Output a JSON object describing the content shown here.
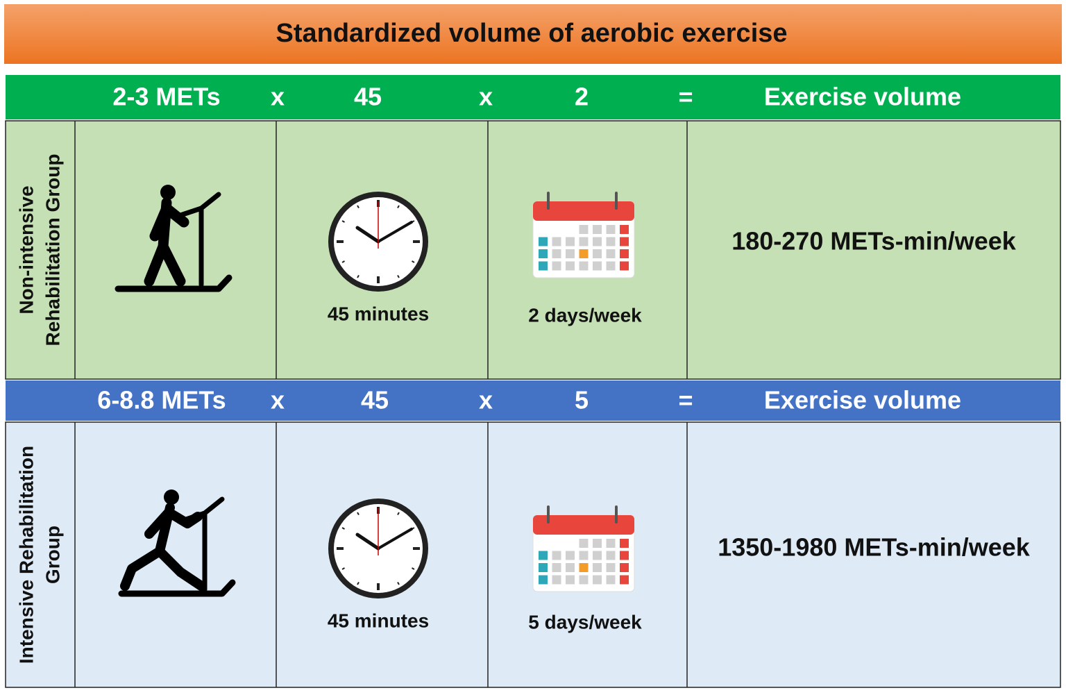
{
  "title": "Standardized volume of aerobic exercise",
  "groups": [
    {
      "name_lines": [
        "Non-intensive",
        "Rehabilitation Group"
      ],
      "formula": [
        "2-3 METs",
        "x",
        "45",
        "x",
        "2",
        "=",
        "Exercise volume"
      ],
      "duration": "45 minutes",
      "frequency": "2 days/week",
      "volume": "180-270 METs-min/week"
    },
    {
      "name_lines": [
        "Intensive Rehabilitation",
        "Group"
      ],
      "formula": [
        "6-8.8 METs",
        "x",
        "45",
        "x",
        "5",
        "=",
        "Exercise volume"
      ],
      "duration": "45 minutes",
      "frequency": "5 days/week",
      "volume": "1350-1980 METs-min/week"
    }
  ]
}
